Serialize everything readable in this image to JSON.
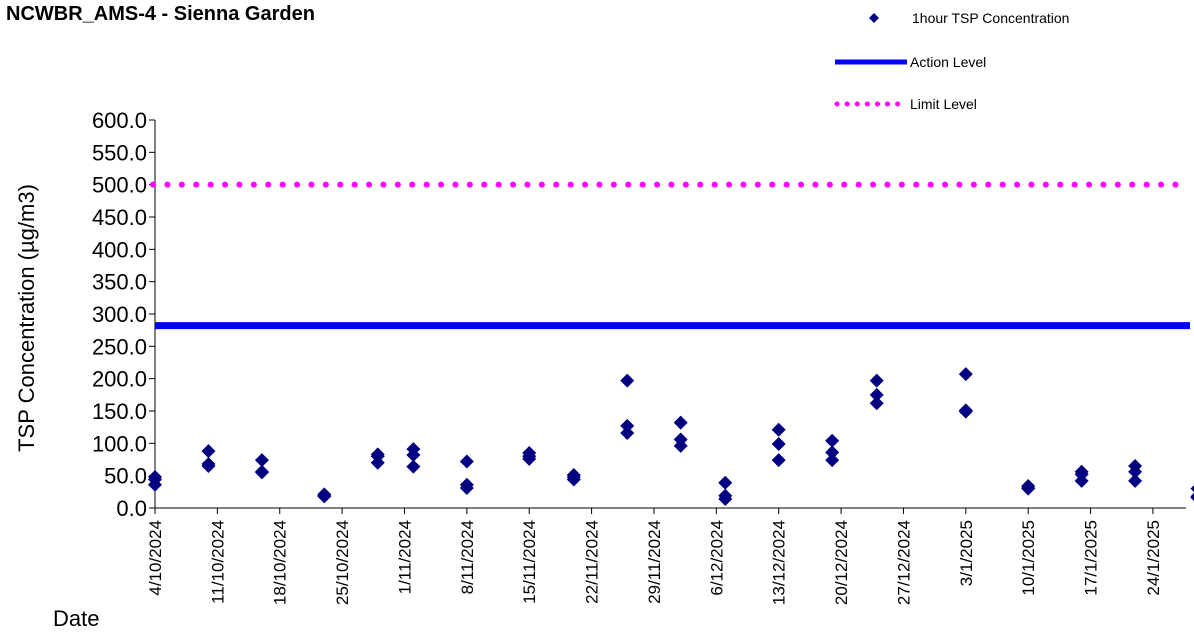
{
  "chart_data": {
    "type": "scatter",
    "title": "NCWBR_AMS-4 - Sienna Garden",
    "xlabel": "Date",
    "ylabel": "TSP Concentration (µg/m3)",
    "ylim": [
      0,
      600
    ],
    "yticks": [
      "0.0",
      "50.0",
      "100.0",
      "150.0",
      "200.0",
      "250.0",
      "300.0",
      "350.0",
      "400.0",
      "450.0",
      "500.0",
      "550.0",
      "600.0"
    ],
    "xlim": [
      "2024-10-04",
      "2025-01-29"
    ],
    "xticks": [
      "4/10/2024",
      "11/10/2024",
      "18/10/2024",
      "25/10/2024",
      "1/11/2024",
      "8/11/2024",
      "15/11/2024",
      "22/11/2024",
      "29/11/2024",
      "6/12/2024",
      "13/12/2024",
      "20/12/2024",
      "27/12/2024",
      "3/1/2025",
      "10/1/2025",
      "17/1/2025",
      "24/1/2025"
    ],
    "legend_position": "top-right",
    "series": [
      {
        "name": "1hour TSP Concentration",
        "style": "marker",
        "color": "#000080",
        "points": [
          {
            "x": "2024-10-04",
            "y": 48
          },
          {
            "x": "2024-10-04",
            "y": 44
          },
          {
            "x": "2024-10-04",
            "y": 36
          },
          {
            "x": "2024-10-10",
            "y": 88
          },
          {
            "x": "2024-10-10",
            "y": 68
          },
          {
            "x": "2024-10-10",
            "y": 65
          },
          {
            "x": "2024-10-16",
            "y": 74
          },
          {
            "x": "2024-10-16",
            "y": 56
          },
          {
            "x": "2024-10-16",
            "y": 55
          },
          {
            "x": "2024-10-23",
            "y": 21
          },
          {
            "x": "2024-10-23",
            "y": 19
          },
          {
            "x": "2024-10-23",
            "y": 18
          },
          {
            "x": "2024-10-29",
            "y": 83
          },
          {
            "x": "2024-10-29",
            "y": 80
          },
          {
            "x": "2024-10-29",
            "y": 70
          },
          {
            "x": "2024-11-02",
            "y": 91
          },
          {
            "x": "2024-11-02",
            "y": 82
          },
          {
            "x": "2024-11-02",
            "y": 64
          },
          {
            "x": "2024-11-08",
            "y": 72
          },
          {
            "x": "2024-11-08",
            "y": 36
          },
          {
            "x": "2024-11-08",
            "y": 31
          },
          {
            "x": "2024-11-15",
            "y": 85
          },
          {
            "x": "2024-11-15",
            "y": 80
          },
          {
            "x": "2024-11-15",
            "y": 76
          },
          {
            "x": "2024-11-20",
            "y": 51
          },
          {
            "x": "2024-11-20",
            "y": 48
          },
          {
            "x": "2024-11-20",
            "y": 44
          },
          {
            "x": "2024-11-26",
            "y": 197
          },
          {
            "x": "2024-11-26",
            "y": 127
          },
          {
            "x": "2024-11-26",
            "y": 116
          },
          {
            "x": "2024-12-02",
            "y": 132
          },
          {
            "x": "2024-12-02",
            "y": 106
          },
          {
            "x": "2024-12-02",
            "y": 96
          },
          {
            "x": "2024-12-07",
            "y": 39
          },
          {
            "x": "2024-12-07",
            "y": 19
          },
          {
            "x": "2024-12-07",
            "y": 14
          },
          {
            "x": "2024-12-13",
            "y": 121
          },
          {
            "x": "2024-12-13",
            "y": 99
          },
          {
            "x": "2024-12-13",
            "y": 74
          },
          {
            "x": "2024-12-19",
            "y": 104
          },
          {
            "x": "2024-12-19",
            "y": 86
          },
          {
            "x": "2024-12-19",
            "y": 74
          },
          {
            "x": "2024-12-24",
            "y": 197
          },
          {
            "x": "2024-12-24",
            "y": 175
          },
          {
            "x": "2024-12-24",
            "y": 162
          },
          {
            "x": "2025-01-03",
            "y": 207
          },
          {
            "x": "2025-01-03",
            "y": 151
          },
          {
            "x": "2025-01-03",
            "y": 149
          },
          {
            "x": "2025-01-10",
            "y": 34
          },
          {
            "x": "2025-01-10",
            "y": 31
          },
          {
            "x": "2025-01-10",
            "y": 30
          },
          {
            "x": "2025-01-16",
            "y": 56
          },
          {
            "x": "2025-01-16",
            "y": 52
          },
          {
            "x": "2025-01-16",
            "y": 42
          },
          {
            "x": "2025-01-22",
            "y": 65
          },
          {
            "x": "2025-01-22",
            "y": 56
          },
          {
            "x": "2025-01-22",
            "y": 42
          },
          {
            "x": "2025-01-29",
            "y": 30
          },
          {
            "x": "2025-01-29",
            "y": 18
          },
          {
            "x": "2025-01-29",
            "y": 16
          }
        ]
      },
      {
        "name": "Action Level",
        "style": "solid-line",
        "color": "#0000FF",
        "value": 282
      },
      {
        "name": "Limit Level",
        "style": "dotted-line",
        "color": "#FF00FF",
        "value": 500
      }
    ]
  }
}
